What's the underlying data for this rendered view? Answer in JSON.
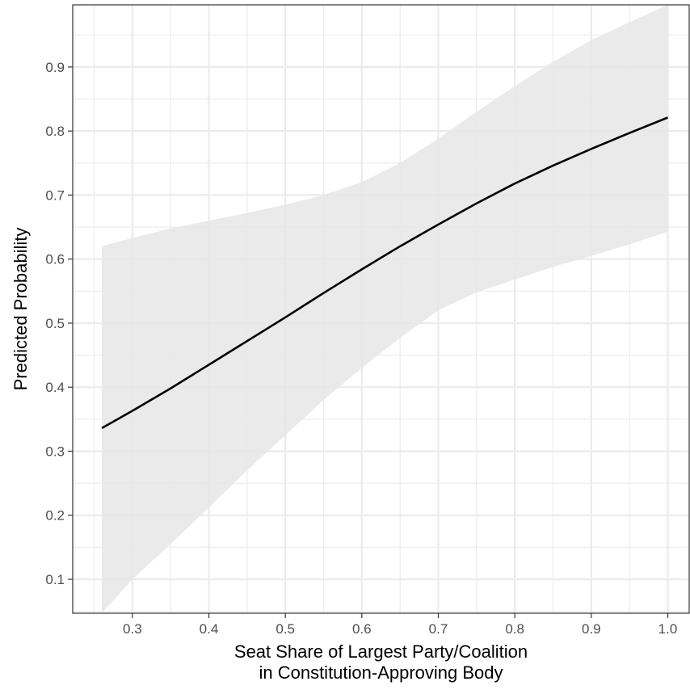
{
  "chart_data": {
    "type": "line",
    "title": "",
    "xlabel_lines": [
      "Seat Share of Largest Party/Coalition",
      "in Constitution-Approving Body"
    ],
    "ylabel": "Predicted Probability",
    "xlim": [
      0.222,
      1.028
    ],
    "ylim": [
      0.047,
      0.997
    ],
    "x_ticks": [
      0.3,
      0.4,
      0.5,
      0.6,
      0.7,
      0.8,
      0.9,
      1.0
    ],
    "x_tick_labels": [
      "0.3",
      "0.4",
      "0.5",
      "0.6",
      "0.7",
      "0.8",
      "0.9",
      "1.0"
    ],
    "y_ticks": [
      0.1,
      0.2,
      0.3,
      0.4,
      0.5,
      0.6,
      0.7,
      0.8,
      0.9
    ],
    "y_tick_labels": [
      "0.1",
      "0.2",
      "0.3",
      "0.4",
      "0.5",
      "0.6",
      "0.7",
      "0.8",
      "0.9"
    ],
    "grid": true,
    "legend": "none",
    "colors": {
      "line": "#000000",
      "ribbon": "#e6e6e6",
      "grid": "#ebebeb",
      "border": "#333333"
    },
    "series": [
      {
        "x": [
          0.26,
          0.3,
          0.35,
          0.4,
          0.45,
          0.5,
          0.55,
          0.6,
          0.65,
          0.7,
          0.75,
          0.8,
          0.85,
          0.9,
          0.95,
          1.0
        ],
        "y": [
          0.336,
          0.363,
          0.398,
          0.435,
          0.472,
          0.509,
          0.547,
          0.584,
          0.62,
          0.654,
          0.687,
          0.718,
          0.746,
          0.772,
          0.797,
          0.821
        ],
        "lower": [
          0.047,
          0.1,
          0.155,
          0.212,
          0.27,
          0.325,
          0.38,
          0.43,
          0.477,
          0.52,
          0.548,
          0.568,
          0.588,
          0.605,
          0.623,
          0.643
        ],
        "upper": [
          0.62,
          0.633,
          0.648,
          0.66,
          0.672,
          0.685,
          0.7,
          0.72,
          0.75,
          0.788,
          0.83,
          0.87,
          0.908,
          0.942,
          0.97,
          0.997
        ]
      }
    ]
  }
}
